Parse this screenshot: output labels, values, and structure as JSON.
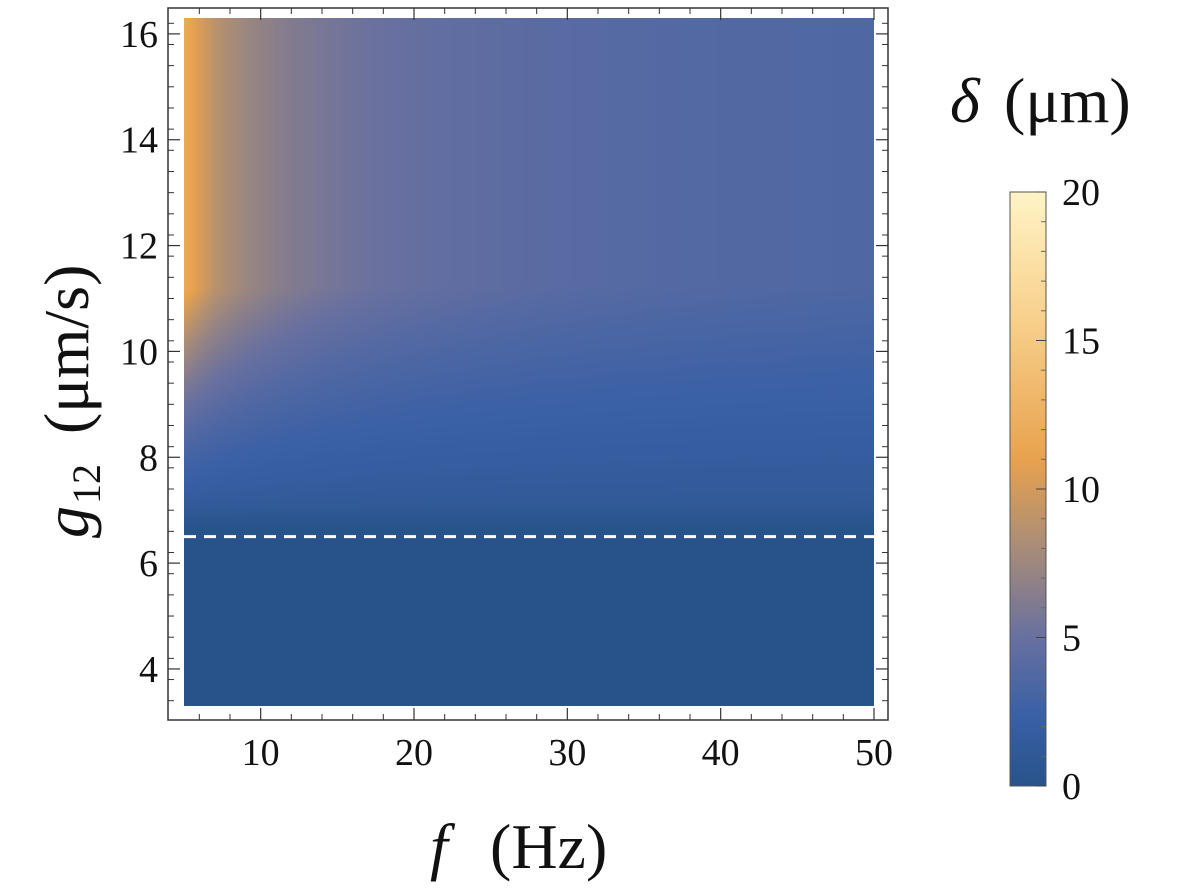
{
  "chart_data": {
    "type": "heatmap",
    "title": "",
    "xlabel": "f",
    "xlabel_unit": "(Hz)",
    "ylabel": "g",
    "ylabel_subscript": "12",
    "ylabel_unit": "(μm/s)",
    "xlim": [
      5,
      50
    ],
    "ylim": [
      3.3,
      16.3
    ],
    "x_ticks": [
      10,
      20,
      30,
      40,
      50
    ],
    "y_ticks": [
      4,
      6,
      8,
      10,
      12,
      14,
      16
    ],
    "colorbar": {
      "label": "δ",
      "unit": "(μm)",
      "range": [
        0,
        20
      ],
      "ticks": [
        0,
        5,
        10,
        15,
        20
      ],
      "colors": [
        "#28538a",
        "#4466aa",
        "#8e8794",
        "#e8a24e",
        "#fff4c6"
      ]
    },
    "threshold_line": {
      "y": 6.5,
      "style": "dashed",
      "color": "#ffffff"
    },
    "grid": false,
    "x_tick_labels": [
      "10",
      "20",
      "30",
      "40",
      "50"
    ],
    "y_tick_labels": [
      "4",
      "6",
      "8",
      "10",
      "12",
      "14",
      "16"
    ],
    "colorbar_tick_labels": [
      "0",
      "5",
      "10",
      "15",
      "20"
    ]
  }
}
